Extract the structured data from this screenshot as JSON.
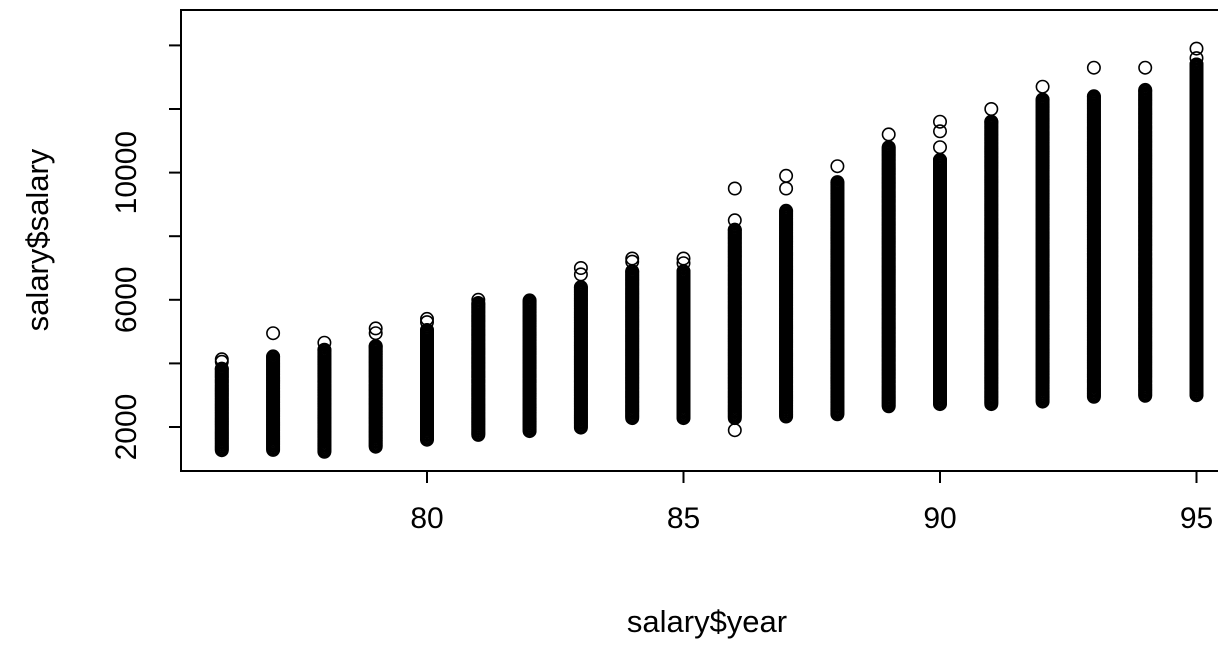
{
  "chart_data": {
    "type": "scatter",
    "title": "",
    "xlabel": "salary$year",
    "ylabel": "salary$salary",
    "xlim": [
      75.5,
      95.5
    ],
    "ylim": [
      1400,
      14200
    ],
    "x_ticks": [
      80,
      85,
      90,
      95
    ],
    "y_ticks": [
      2000,
      6000,
      10000
    ],
    "grid": false,
    "legend": "none",
    "marker": "open-circle",
    "marker_color": "#000000",
    "columns": [
      {
        "x": 76,
        "min": 1270,
        "max": 3830,
        "outliers": [
          4130,
          4050
        ]
      },
      {
        "x": 77,
        "min": 1280,
        "max": 4220,
        "outliers": [
          4950
        ]
      },
      {
        "x": 78,
        "min": 1220,
        "max": 4430,
        "outliers": [
          4650
        ]
      },
      {
        "x": 79,
        "min": 1380,
        "max": 4540,
        "outliers": [
          4950,
          5100
        ]
      },
      {
        "x": 80,
        "min": 1600,
        "max": 5050,
        "outliers": [
          5300,
          5400
        ]
      },
      {
        "x": 81,
        "min": 1750,
        "max": 5900,
        "outliers": [
          6000
        ]
      },
      {
        "x": 82,
        "min": 1870,
        "max": 5980,
        "outliers": []
      },
      {
        "x": 83,
        "min": 1980,
        "max": 6400,
        "outliers": [
          6800,
          7000
        ]
      },
      {
        "x": 84,
        "min": 2280,
        "max": 6900,
        "outliers": [
          7200,
          7300
        ]
      },
      {
        "x": 85,
        "min": 2280,
        "max": 6900,
        "outliers": [
          7150,
          7300
        ]
      },
      {
        "x": 86,
        "min": 2280,
        "max": 8200,
        "outliers": [
          8500,
          9500,
          1900
        ]
      },
      {
        "x": 87,
        "min": 2330,
        "max": 8800,
        "outliers": [
          9500,
          9900
        ]
      },
      {
        "x": 88,
        "min": 2400,
        "max": 9700,
        "outliers": [
          10200
        ]
      },
      {
        "x": 89,
        "min": 2650,
        "max": 10800,
        "outliers": [
          11200
        ]
      },
      {
        "x": 90,
        "min": 2720,
        "max": 10400,
        "outliers": [
          10800,
          11300,
          11600
        ]
      },
      {
        "x": 91,
        "min": 2720,
        "max": 11600,
        "outliers": [
          12000
        ]
      },
      {
        "x": 92,
        "min": 2800,
        "max": 12300,
        "outliers": [
          12700
        ]
      },
      {
        "x": 93,
        "min": 2950,
        "max": 12400,
        "outliers": [
          13300
        ]
      },
      {
        "x": 94,
        "min": 2980,
        "max": 12600,
        "outliers": [
          13300
        ]
      },
      {
        "x": 95,
        "min": 3000,
        "max": 13400,
        "outliers": [
          13600,
          13900
        ]
      }
    ]
  }
}
